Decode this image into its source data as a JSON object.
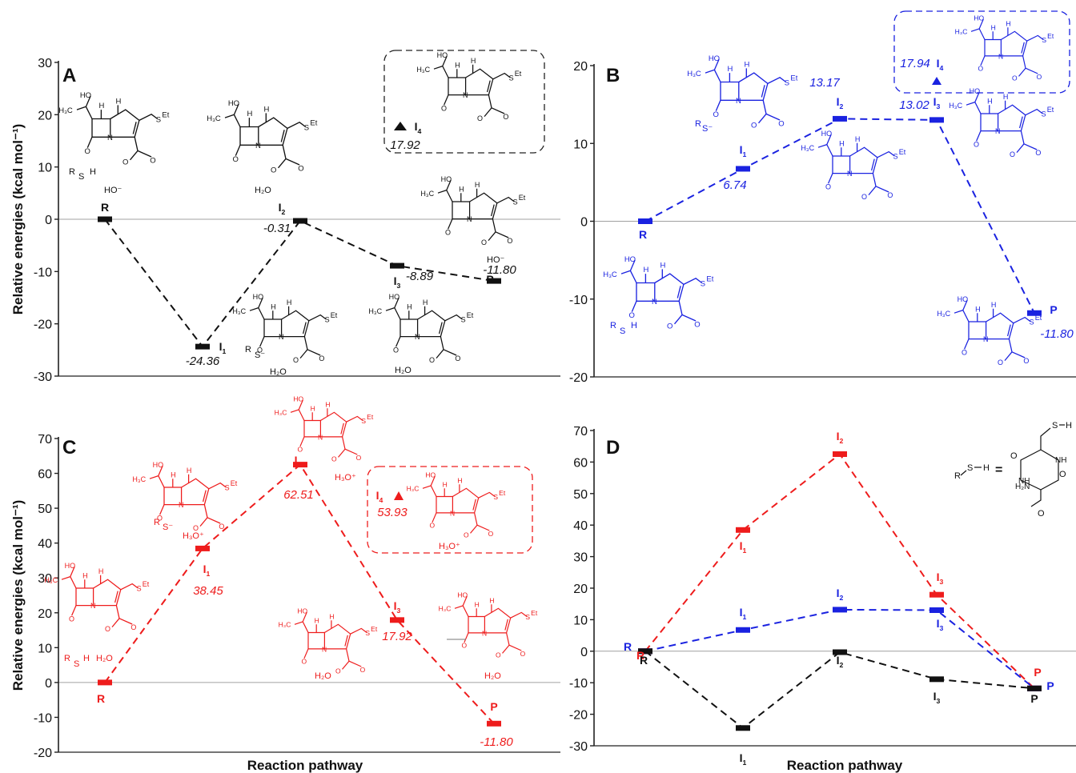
{
  "figure": {
    "x_label": "Reaction pathway",
    "y_label": "Relative energies (kcal mol⁻¹)"
  },
  "colors": {
    "black": "#111111",
    "blue": "#1a22e0",
    "red": "#ee1c1c",
    "axis": "#222222",
    "zero_line": "#a0a0a0"
  },
  "chart_data": [
    {
      "panel": "A",
      "type": "line",
      "ylim": [
        -30,
        30
      ],
      "yticks": [
        -30,
        -20,
        -10,
        0,
        10,
        20,
        30
      ],
      "series": [
        {
          "color_key": "black",
          "points": [
            {
              "label": "R",
              "sub": "",
              "value": 0,
              "value_text": ""
            },
            {
              "label": "I",
              "sub": "1",
              "value": -24.36,
              "value_text": "-24.36"
            },
            {
              "label": "I",
              "sub": "2",
              "value": -0.31,
              "value_text": "-0.31"
            },
            {
              "label": "I",
              "sub": "3",
              "value": -8.89,
              "value_text": "-8.89"
            },
            {
              "label": "P",
              "sub": "",
              "value": -11.8,
              "value_text": "-11.80"
            }
          ]
        }
      ],
      "inset": {
        "label": "I",
        "sub": "4",
        "value": 17.92,
        "value_text": "17.92"
      },
      "species_text": [
        "R",
        "S",
        "H",
        "HO⁻",
        "H₂O",
        "R",
        "S⁻",
        "H₂O",
        "H₂O",
        "HO⁻"
      ]
    },
    {
      "panel": "B",
      "type": "line",
      "ylim": [
        -20,
        20
      ],
      "yticks": [
        -20,
        -10,
        0,
        10,
        20
      ],
      "series": [
        {
          "color_key": "blue",
          "points": [
            {
              "label": "R",
              "sub": "",
              "value": 0,
              "value_text": ""
            },
            {
              "label": "I",
              "sub": "1",
              "value": 6.74,
              "value_text": "6.74"
            },
            {
              "label": "I",
              "sub": "2",
              "value": 13.17,
              "value_text": "13.17"
            },
            {
              "label": "I",
              "sub": "3",
              "value": 13.02,
              "value_text": "13.02"
            },
            {
              "label": "P",
              "sub": "",
              "value": -11.8,
              "value_text": "-11.80"
            }
          ]
        }
      ],
      "inset": {
        "label": "I",
        "sub": "4",
        "value": 17.94,
        "value_text": "17.94"
      },
      "species_text": [
        "R",
        "S⁻",
        "R",
        "S",
        "H"
      ]
    },
    {
      "panel": "C",
      "type": "line",
      "ylim": [
        -20,
        70
      ],
      "yticks": [
        -20,
        -10,
        0,
        10,
        20,
        30,
        40,
        50,
        60,
        70
      ],
      "series": [
        {
          "color_key": "red",
          "points": [
            {
              "label": "R",
              "sub": "",
              "value": 0,
              "value_text": ""
            },
            {
              "label": "I",
              "sub": "1",
              "value": 38.45,
              "value_text": "38.45"
            },
            {
              "label": "I",
              "sub": "2",
              "value": 62.51,
              "value_text": "62.51"
            },
            {
              "label": "I",
              "sub": "3",
              "value": 17.92,
              "value_text": "17.92"
            },
            {
              "label": "P",
              "sub": "",
              "value": -11.8,
              "value_text": "-11.80"
            }
          ]
        }
      ],
      "inset": {
        "label": "I",
        "sub": "4",
        "value": 53.93,
        "value_text": "53.93"
      },
      "species_text": [
        "R",
        "S⁻",
        "H₃O⁺",
        "H₃O⁺",
        "H₃O⁺",
        "R",
        "S",
        "H",
        "H₂O",
        "H₂O",
        "H₂O"
      ]
    },
    {
      "panel": "D",
      "type": "line",
      "ylim": [
        -30,
        70
      ],
      "yticks": [
        -30,
        -20,
        -10,
        0,
        10,
        20,
        30,
        40,
        50,
        60,
        70
      ],
      "series": [
        {
          "color_key": "red",
          "points": [
            {
              "label": "R",
              "sub": "",
              "value": 0
            },
            {
              "label": "I",
              "sub": "1",
              "value": 38.45
            },
            {
              "label": "I",
              "sub": "2",
              "value": 62.51
            },
            {
              "label": "I",
              "sub": "3",
              "value": 17.92
            },
            {
              "label": "P",
              "sub": "",
              "value": -11.8
            }
          ]
        },
        {
          "color_key": "blue",
          "points": [
            {
              "label": "R",
              "sub": "",
              "value": 0
            },
            {
              "label": "I",
              "sub": "1",
              "value": 6.74
            },
            {
              "label": "I",
              "sub": "2",
              "value": 13.17
            },
            {
              "label": "I",
              "sub": "3",
              "value": 13.02
            },
            {
              "label": "P",
              "sub": "",
              "value": -11.8
            }
          ]
        },
        {
          "color_key": "black",
          "points": [
            {
              "label": "R",
              "sub": "",
              "value": 0
            },
            {
              "label": "I",
              "sub": "1",
              "value": -24.36
            },
            {
              "label": "I",
              "sub": "2",
              "value": -0.31
            },
            {
              "label": "I",
              "sub": "3",
              "value": -8.89
            },
            {
              "label": "P",
              "sub": "",
              "value": -11.8
            }
          ]
        }
      ],
      "legend_text": [
        "R",
        "S",
        "H",
        "=",
        "S",
        "H",
        "O",
        "NH",
        "NH",
        "H₂N",
        "O",
        "O"
      ]
    }
  ]
}
